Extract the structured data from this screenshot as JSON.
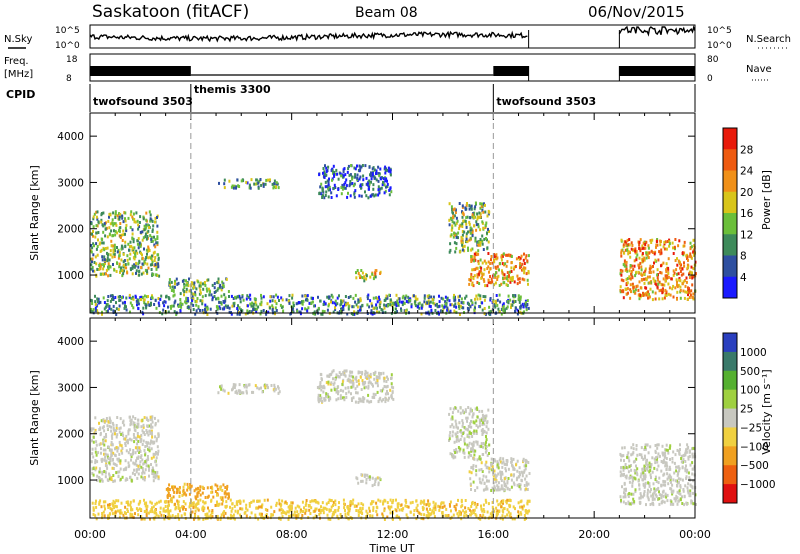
{
  "header": {
    "station": "Saskatoon (fitACF)",
    "beam": "Beam 08",
    "date": "06/Nov/2015"
  },
  "nsky_panel": {
    "left_label": "N.Sky",
    "right_label": "N.Search",
    "left_ticks": [
      "10^5",
      "10^0"
    ],
    "right_ticks": [
      "10^5",
      "10^0"
    ]
  },
  "freq_panel": {
    "left_label_1": "Freq.",
    "left_label_2": "[MHz]",
    "right_label": "Nave",
    "left_ticks": [
      "18",
      "8"
    ],
    "right_ticks": [
      "80",
      "0"
    ]
  },
  "cpid": {
    "label": "CPID",
    "segments": [
      {
        "name": "twofsound 3503",
        "start_hour": 0,
        "end_hour": 4
      },
      {
        "name": "themis 3300",
        "start_hour": 4,
        "end_hour": 16
      },
      {
        "name": "twofsound 3503",
        "start_hour": 16,
        "end_hour": 24
      }
    ]
  },
  "xaxis": {
    "label": "Time UT",
    "ticks": [
      "00:00",
      "04:00",
      "08:00",
      "12:00",
      "16:00",
      "20:00",
      "00:00"
    ]
  },
  "colors": {
    "power": [
      "#1a1aff",
      "#2e4fa0",
      "#3d8a5a",
      "#6bbf3a",
      "#d8c51a",
      "#f09018",
      "#ee5a10",
      "#e81a0a"
    ],
    "velocity": [
      "#2a3fbf",
      "#3a7a6a",
      "#55b030",
      "#9fd040",
      "#c8c8c0",
      "#f0d040",
      "#f0a020",
      "#ee6010",
      "#e01010"
    ]
  },
  "chart_data": [
    {
      "type": "heatmap",
      "title": "Power",
      "xlabel": "Time UT",
      "ylabel": "Slant Range [km]",
      "xlim": [
        0,
        24
      ],
      "ylim": [
        180,
        4500
      ],
      "yticks": [
        1000,
        2000,
        3000,
        4000
      ],
      "colorbar": {
        "label": "Power [dB]",
        "ticks": [
          4,
          8,
          12,
          16,
          20,
          24,
          28
        ],
        "range": [
          0,
          32
        ]
      },
      "regions": [
        {
          "t": [
            0.0,
            2.7
          ],
          "r": [
            1000,
            2400
          ],
          "value": 14
        },
        {
          "t": [
            0.0,
            17.4
          ],
          "r": [
            180,
            600
          ],
          "value": 10
        },
        {
          "t": [
            3.0,
            5.5
          ],
          "r": [
            600,
            950
          ],
          "value": 12
        },
        {
          "t": [
            5.0,
            7.5
          ],
          "r": [
            2900,
            3100
          ],
          "value": 10
        },
        {
          "t": [
            9.0,
            12.0
          ],
          "r": [
            2700,
            3400
          ],
          "value": 6
        },
        {
          "t": [
            10.5,
            11.5
          ],
          "r": [
            900,
            1150
          ],
          "value": 18
        },
        {
          "t": [
            14.2,
            15.8
          ],
          "r": [
            1500,
            2600
          ],
          "value": 14
        },
        {
          "t": [
            15.0,
            17.4
          ],
          "r": [
            800,
            1500
          ],
          "value": 22
        },
        {
          "t": [
            21.0,
            24.0
          ],
          "r": [
            500,
            1800
          ],
          "value": 22
        }
      ]
    },
    {
      "type": "heatmap",
      "title": "Velocity",
      "xlabel": "Time UT",
      "ylabel": "Slant Range [km]",
      "xlim": [
        0,
        24
      ],
      "ylim": [
        180,
        4500
      ],
      "yticks": [
        1000,
        2000,
        3000,
        4000
      ],
      "colorbar": {
        "label": "Velocity [m s⁻¹]",
        "ticks": [
          "1000",
          "500",
          "100",
          "25",
          "−25",
          "−100",
          "−500",
          "−1000"
        ]
      },
      "regions": [
        {
          "t": [
            0.0,
            2.7
          ],
          "r": [
            1000,
            2400
          ],
          "value": 0
        },
        {
          "t": [
            0.0,
            17.4
          ],
          "r": [
            180,
            600
          ],
          "value": -80
        },
        {
          "t": [
            3.0,
            5.5
          ],
          "r": [
            600,
            950
          ],
          "value": -120
        },
        {
          "t": [
            5.0,
            7.5
          ],
          "r": [
            2900,
            3100
          ],
          "value": 0
        },
        {
          "t": [
            9.0,
            12.0
          ],
          "r": [
            2700,
            3400
          ],
          "value": 0
        },
        {
          "t": [
            10.5,
            11.5
          ],
          "r": [
            900,
            1150
          ],
          "value": 0
        },
        {
          "t": [
            14.2,
            15.8
          ],
          "r": [
            1500,
            2600
          ],
          "value": 10
        },
        {
          "t": [
            15.0,
            17.4
          ],
          "r": [
            800,
            1500
          ],
          "value": 0
        },
        {
          "t": [
            21.0,
            24.0
          ],
          "r": [
            500,
            1800
          ],
          "value": 5
        }
      ]
    }
  ]
}
